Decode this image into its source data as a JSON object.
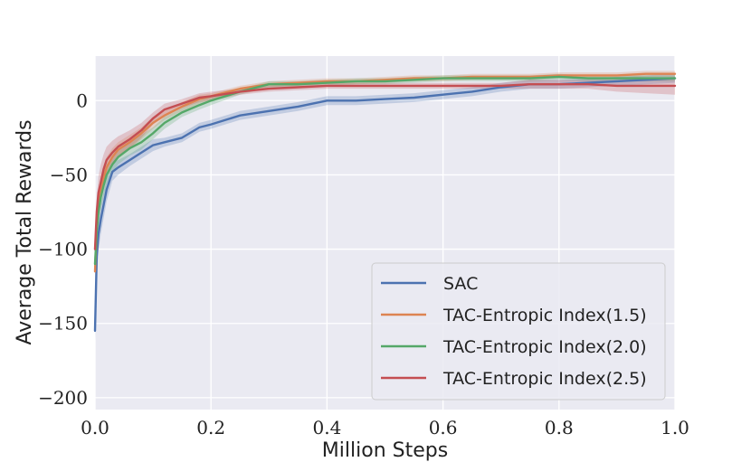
{
  "chart_data": {
    "type": "line",
    "title": "",
    "xlabel": "Million Steps",
    "ylabel": "Average Total Rewards",
    "xlim": [
      0.0,
      1.0
    ],
    "ylim": [
      -208,
      30
    ],
    "xticks": [
      0.0,
      0.2,
      0.4,
      0.6,
      0.8,
      1.0
    ],
    "xtick_labels": [
      "0.0",
      "0.2",
      "0.4",
      "0.6",
      "0.8",
      "1.0"
    ],
    "yticks": [
      0,
      -50,
      -100,
      -150,
      -200
    ],
    "ytick_labels": [
      "0",
      "−50",
      "−100",
      "−150",
      "−200"
    ],
    "grid": true,
    "legend_position": "lower-right",
    "series": [
      {
        "name": "SAC",
        "color": "#4c72b0",
        "x": [
          0.0,
          0.003,
          0.006,
          0.01,
          0.015,
          0.02,
          0.03,
          0.04,
          0.06,
          0.08,
          0.1,
          0.12,
          0.15,
          0.18,
          0.2,
          0.25,
          0.3,
          0.35,
          0.4,
          0.45,
          0.5,
          0.55,
          0.6,
          0.65,
          0.7,
          0.75,
          0.8,
          0.85,
          0.9,
          0.95,
          1.0
        ],
        "y": [
          -155,
          -105,
          -90,
          -80,
          -70,
          -60,
          -48,
          -45,
          -40,
          -35,
          -30,
          -28,
          -25,
          -18,
          -16,
          -10,
          -7,
          -4,
          0,
          0,
          1,
          2,
          4,
          6,
          9,
          11,
          11,
          12,
          13,
          14,
          15
        ],
        "band": [
          6,
          12,
          11,
          10,
          9,
          8,
          6,
          5,
          4,
          4,
          4,
          3,
          3,
          3,
          3,
          3,
          3,
          3,
          3,
          3,
          3,
          3,
          3,
          3,
          3,
          3,
          3,
          3,
          3,
          3,
          3
        ]
      },
      {
        "name": "TAC-Entropic Index(1.5)",
        "color": "#dd8452",
        "x": [
          0.0,
          0.003,
          0.006,
          0.01,
          0.015,
          0.02,
          0.03,
          0.04,
          0.06,
          0.08,
          0.1,
          0.12,
          0.15,
          0.18,
          0.2,
          0.25,
          0.3,
          0.35,
          0.4,
          0.45,
          0.5,
          0.55,
          0.6,
          0.65,
          0.7,
          0.75,
          0.8,
          0.85,
          0.9,
          0.95,
          1.0
        ],
        "y": [
          -115,
          -85,
          -70,
          -60,
          -52,
          -45,
          -38,
          -33,
          -28,
          -22,
          -15,
          -10,
          -4,
          1,
          3,
          8,
          11,
          12,
          13,
          13,
          14,
          15,
          15,
          16,
          16,
          16,
          17,
          17,
          17,
          18,
          18
        ],
        "band": [
          6,
          10,
          10,
          9,
          8,
          7,
          6,
          5,
          5,
          4,
          4,
          3,
          3,
          3,
          2,
          2,
          2,
          2,
          2,
          2,
          2,
          2,
          2,
          2,
          2,
          2,
          2,
          2,
          2,
          2,
          2
        ]
      },
      {
        "name": "TAC-Entropic Index(2.0)",
        "color": "#55a868",
        "x": [
          0.0,
          0.003,
          0.006,
          0.01,
          0.015,
          0.02,
          0.03,
          0.04,
          0.06,
          0.08,
          0.1,
          0.12,
          0.15,
          0.18,
          0.2,
          0.25,
          0.3,
          0.35,
          0.4,
          0.45,
          0.5,
          0.55,
          0.6,
          0.65,
          0.7,
          0.75,
          0.8,
          0.85,
          0.9,
          0.95,
          1.0
        ],
        "y": [
          -110,
          -88,
          -75,
          -65,
          -57,
          -50,
          -43,
          -38,
          -32,
          -28,
          -22,
          -15,
          -8,
          -3,
          0,
          6,
          11,
          11,
          12,
          13,
          13,
          14,
          15,
          15,
          15,
          15,
          16,
          15,
          15,
          15,
          15
        ],
        "band": [
          6,
          10,
          10,
          9,
          8,
          7,
          6,
          5,
          5,
          5,
          4,
          4,
          3,
          3,
          3,
          2,
          2,
          2,
          2,
          2,
          2,
          2,
          2,
          2,
          2,
          2,
          2,
          2,
          2,
          2,
          2
        ]
      },
      {
        "name": "TAC-Entropic Index(2.5)",
        "color": "#c44e52",
        "x": [
          0.0,
          0.003,
          0.006,
          0.01,
          0.015,
          0.02,
          0.03,
          0.04,
          0.06,
          0.08,
          0.1,
          0.12,
          0.15,
          0.18,
          0.2,
          0.25,
          0.3,
          0.35,
          0.4,
          0.45,
          0.5,
          0.55,
          0.6,
          0.65,
          0.7,
          0.75,
          0.8,
          0.85,
          0.9,
          0.95,
          1.0
        ],
        "y": [
          -100,
          -75,
          -62,
          -55,
          -46,
          -40,
          -35,
          -31,
          -26,
          -20,
          -12,
          -6,
          -2,
          2,
          3,
          6,
          8,
          9,
          10,
          10,
          10,
          10,
          10,
          10,
          10,
          11,
          11,
          11,
          10,
          10,
          10
        ],
        "band": [
          6,
          10,
          11,
          12,
          10,
          9,
          8,
          7,
          6,
          5,
          4,
          4,
          3,
          3,
          3,
          2,
          2,
          2,
          2,
          2,
          2,
          2,
          2,
          2,
          2,
          3,
          3,
          3,
          4,
          5,
          6
        ]
      }
    ]
  }
}
